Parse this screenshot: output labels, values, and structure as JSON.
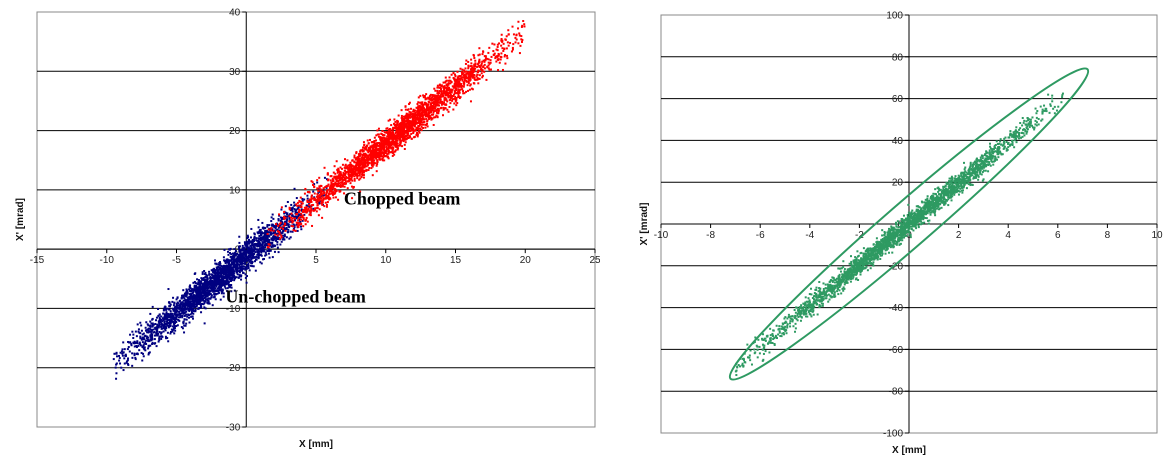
{
  "charts": {
    "left": {
      "type": "scatter",
      "xlabel": "X [mm]",
      "ylabel": "X' [mrad]",
      "xlim": [
        -15,
        25
      ],
      "ylim": [
        -30,
        40
      ],
      "xticks": [
        -15,
        -10,
        -5,
        0,
        5,
        10,
        15,
        20,
        25
      ],
      "yticks": [
        -30,
        -20,
        -10,
        0,
        10,
        20,
        30,
        40
      ],
      "grid": "horizontal",
      "annotations": [
        {
          "text": "Chopped beam",
          "x": 7.0,
          "y": 7.5
        },
        {
          "text": "Un-chopped beam",
          "x": -1.5,
          "y": -9.0
        }
      ],
      "series": [
        {
          "color": "#000080",
          "x_range": [
            -9.5,
            5.8
          ],
          "y_center_at_x0": -1.2,
          "slope": 1.9,
          "spread": 2.8
        },
        {
          "color": "#ff0000",
          "x_range": [
            1.5,
            20.0
          ],
          "y_center_at_x0": -1.2,
          "slope": 1.9,
          "spread": 2.6
        }
      ]
    },
    "right": {
      "type": "scatter",
      "xlabel": "X [mm]",
      "ylabel": "X' [mrad]",
      "xlim": [
        -10,
        10
      ],
      "ylim": [
        -100,
        100
      ],
      "xticks": [
        -10,
        -8,
        -6,
        -4,
        -2,
        0,
        2,
        4,
        6,
        8,
        10
      ],
      "yticks": [
        -100,
        -80,
        -60,
        -40,
        -20,
        0,
        20,
        40,
        60,
        80,
        100
      ],
      "grid": "horizontal",
      "series": [
        {
          "color": "#2e9a62",
          "x_range": [
            -7.0,
            6.3
          ],
          "y_center_at_x0": 0,
          "slope": 9.8,
          "spread": 5
        }
      ],
      "ellipse": {
        "color": "#2e9a62",
        "semi_major_x": 7.2,
        "semi_major_y": 74,
        "semi_minor_y": 14
      }
    }
  }
}
